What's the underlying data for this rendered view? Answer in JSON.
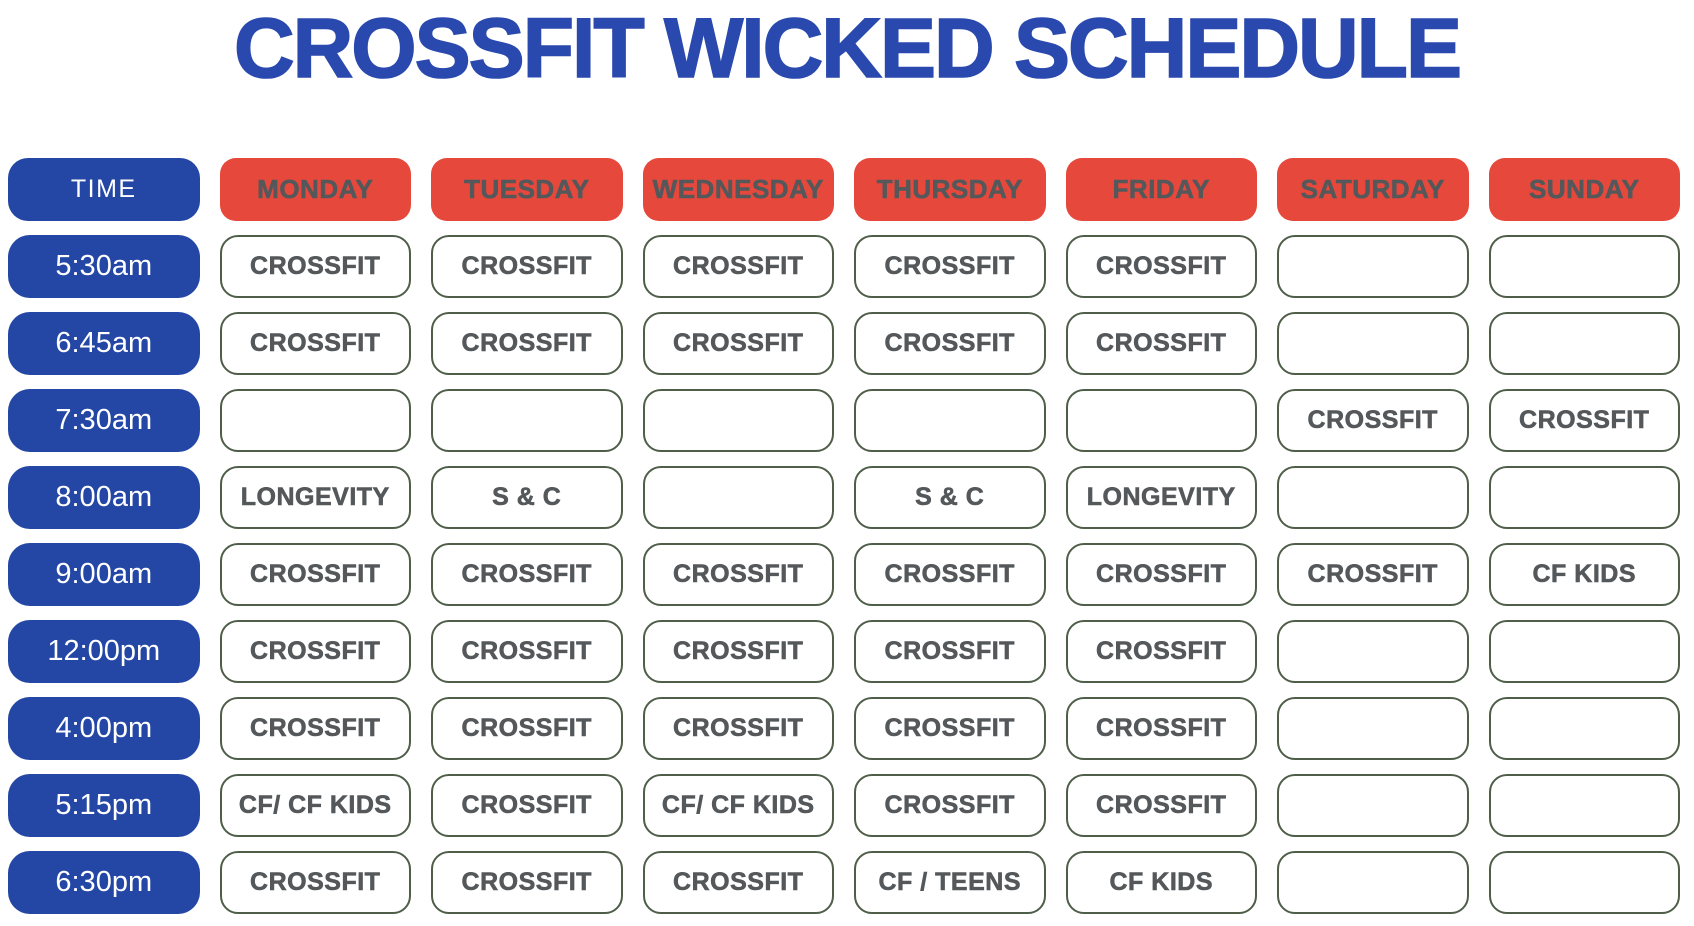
{
  "title": "CROSSFIT WICKED SCHEDULE",
  "colors": {
    "title_blue": "#2a49ae",
    "time_pill_blue": "#2447a5",
    "day_pill_red": "#e6493c",
    "header_and_cell_text_gray": "#54585a",
    "cell_border_green": "#4f5e49",
    "time_text_white": "#ffffff"
  },
  "table": {
    "time_header": "TIME",
    "days": [
      "MONDAY",
      "TUESDAY",
      "WEDNESDAY",
      "THURSDAY",
      "FRIDAY",
      "SATURDAY",
      "SUNDAY"
    ],
    "rows": [
      {
        "time": "5:30am",
        "cells": [
          "CROSSFIT",
          "CROSSFIT",
          "CROSSFIT",
          "CROSSFIT",
          "CROSSFIT",
          "",
          ""
        ]
      },
      {
        "time": "6:45am",
        "cells": [
          "CROSSFIT",
          "CROSSFIT",
          "CROSSFIT",
          "CROSSFIT",
          "CROSSFIT",
          "",
          ""
        ]
      },
      {
        "time": "7:30am",
        "cells": [
          "",
          "",
          "",
          "",
          "",
          "CROSSFIT",
          "CROSSFIT"
        ]
      },
      {
        "time": "8:00am",
        "cells": [
          "LONGEVITY",
          "S & C",
          "",
          "S & C",
          "LONGEVITY",
          "",
          ""
        ]
      },
      {
        "time": "9:00am",
        "cells": [
          "CROSSFIT",
          "CROSSFIT",
          "CROSSFIT",
          "CROSSFIT",
          "CROSSFIT",
          "CROSSFIT",
          "CF KIDS"
        ]
      },
      {
        "time": "12:00pm",
        "cells": [
          "CROSSFIT",
          "CROSSFIT",
          "CROSSFIT",
          "CROSSFIT",
          "CROSSFIT",
          "",
          ""
        ]
      },
      {
        "time": "4:00pm",
        "cells": [
          "CROSSFIT",
          "CROSSFIT",
          "CROSSFIT",
          "CROSSFIT",
          "CROSSFIT",
          "",
          ""
        ]
      },
      {
        "time": "5:15pm",
        "cells": [
          "CF/ CF KIDS",
          "CROSSFIT",
          "CF/ CF KIDS",
          "CROSSFIT",
          "CROSSFIT",
          "",
          ""
        ]
      },
      {
        "time": "6:30pm",
        "cells": [
          "CROSSFIT",
          "CROSSFIT",
          "CROSSFIT",
          "CF / TEENS",
          "CF KIDS",
          "",
          ""
        ]
      }
    ]
  }
}
